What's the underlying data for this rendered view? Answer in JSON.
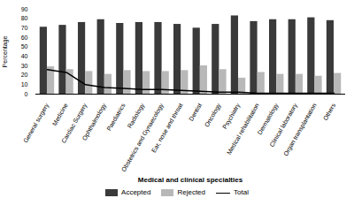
{
  "chart_data": {
    "type": "bar",
    "categories": [
      "General surgery",
      "Medicine",
      "Cardiac Surgery",
      "Ophthalmology",
      "Paediatrics",
      "Radiology",
      "Obstetrics and Gynaecology",
      "Ear, nose and throat",
      "Dentist",
      "Oncology",
      "Psychiatry",
      "Medical rehabilitation",
      "Dermatology",
      "Clinical laboratory",
      "Organ transplantation",
      "Others"
    ],
    "series": [
      {
        "name": "Accepted",
        "type": "bar",
        "color": "#3a3a3a",
        "values": [
          71,
          73,
          76,
          79,
          75,
          76,
          76,
          74,
          70,
          74,
          83,
          77,
          79,
          79,
          81,
          78
        ]
      },
      {
        "name": "Rejected",
        "type": "bar",
        "color": "#b8b8b8",
        "values": [
          29,
          26,
          24,
          21,
          25,
          24,
          24,
          25,
          30,
          26,
          17,
          23,
          21,
          21,
          19,
          22
        ]
      },
      {
        "name": "Total",
        "type": "line",
        "color": "#000000",
        "values": [
          26,
          23,
          10,
          7,
          6,
          5,
          5,
          4,
          3,
          2,
          2,
          1,
          1,
          1,
          1,
          1
        ]
      }
    ],
    "xlabel": "Medical and clinical specialties",
    "ylabel": "Percentage",
    "ylim": [
      0,
      90
    ],
    "yticks": [
      0,
      10,
      20,
      30,
      40,
      50,
      60,
      70,
      80,
      90
    ],
    "grid": false,
    "legend": "bottom"
  }
}
